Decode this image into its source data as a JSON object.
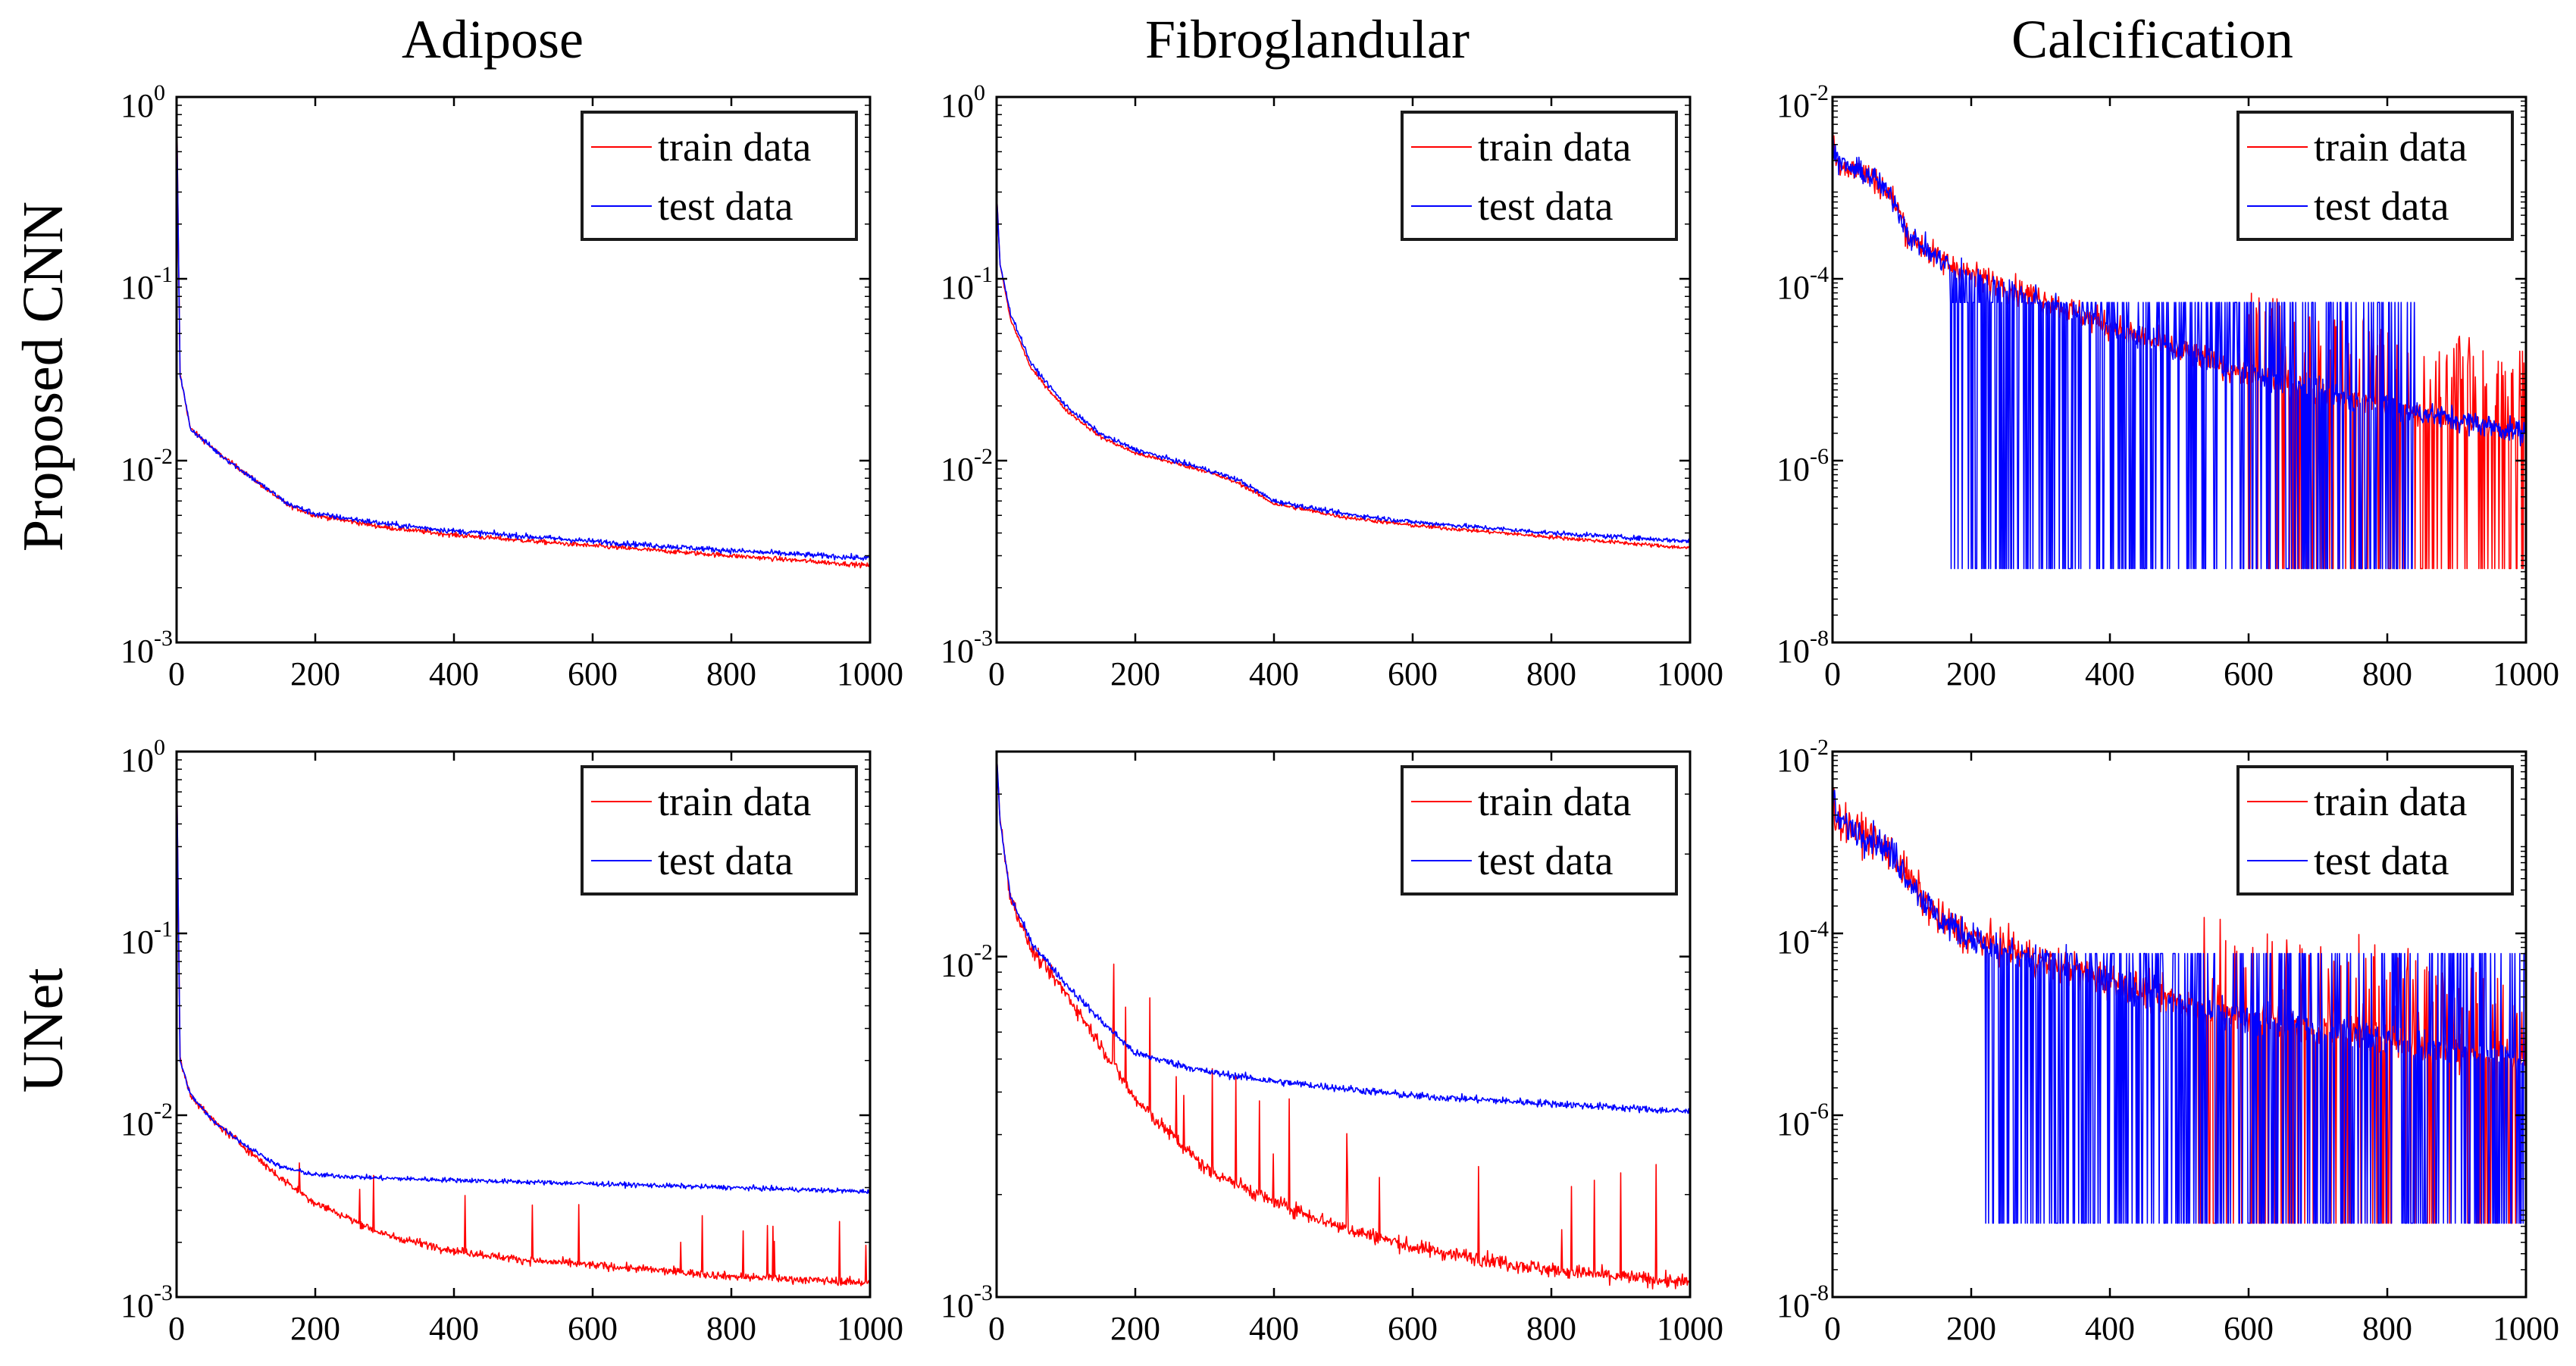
{
  "figure": {
    "column_titles": [
      "Adipose",
      "Fibroglandular",
      "Calcification"
    ],
    "row_labels": [
      "Proposed CNN",
      "UNet"
    ],
    "colors": {
      "train": "#ff0000",
      "test": "#0000ff",
      "axis": "#000000",
      "legend_border": "#1a1a1a"
    }
  },
  "chart_data": [
    {
      "type": "line",
      "title": "Adipose",
      "row": "Proposed CNN",
      "yscale": "log",
      "xlim": [
        0,
        1000
      ],
      "ylim": [
        0.001,
        1
      ],
      "xticks": [
        0,
        200,
        400,
        600,
        800,
        1000
      ],
      "yticks": [
        {
          "base": "10",
          "exp": "-3",
          "value": 0.001
        },
        {
          "base": "10",
          "exp": "-2",
          "value": 0.01
        },
        {
          "base": "10",
          "exp": "-1",
          "value": 0.1
        },
        {
          "base": "10",
          "exp": "0",
          "value": 1
        }
      ],
      "legend": [
        "train data",
        "test data"
      ],
      "legend_position": "top-right",
      "series": [
        {
          "name": "train data",
          "color": "#ff0000",
          "noise": 0.03,
          "x": [
            0,
            5,
            20,
            60,
            100,
            160,
            200,
            300,
            400,
            600,
            800,
            1000
          ],
          "y": [
            1.0,
            0.03,
            0.015,
            0.011,
            0.0085,
            0.0057,
            0.005,
            0.0043,
            0.0039,
            0.0034,
            0.003,
            0.00265
          ]
        },
        {
          "name": "test data",
          "color": "#0000ff",
          "noise": 0.035,
          "x": [
            0,
            5,
            20,
            60,
            100,
            160,
            200,
            300,
            400,
            600,
            800,
            1000
          ],
          "y": [
            1.0,
            0.03,
            0.015,
            0.011,
            0.0085,
            0.0058,
            0.0051,
            0.0045,
            0.0041,
            0.0036,
            0.0032,
            0.0029
          ]
        }
      ]
    },
    {
      "type": "line",
      "title": "Fibroglandular",
      "row": "Proposed CNN",
      "yscale": "log",
      "xlim": [
        0,
        1000
      ],
      "ylim": [
        0.001,
        1
      ],
      "xticks": [
        0,
        200,
        400,
        600,
        800,
        1000
      ],
      "yticks": [
        {
          "base": "10",
          "exp": "-3",
          "value": 0.001
        },
        {
          "base": "10",
          "exp": "-2",
          "value": 0.01
        },
        {
          "base": "10",
          "exp": "-1",
          "value": 0.1
        },
        {
          "base": "10",
          "exp": "0",
          "value": 1
        }
      ],
      "legend": [
        "train data",
        "test data"
      ],
      "legend_position": "top-right",
      "series": [
        {
          "name": "train data",
          "color": "#ff0000",
          "noise": 0.025,
          "x": [
            0,
            5,
            20,
            50,
            100,
            150,
            200,
            300,
            350,
            400,
            500,
            600,
            800,
            1000
          ],
          "y": [
            0.3,
            0.12,
            0.06,
            0.032,
            0.019,
            0.0135,
            0.011,
            0.0088,
            0.0075,
            0.0058,
            0.0049,
            0.0044,
            0.0038,
            0.0033
          ]
        },
        {
          "name": "test data",
          "color": "#0000ff",
          "noise": 0.03,
          "x": [
            0,
            5,
            20,
            50,
            100,
            150,
            200,
            300,
            350,
            400,
            500,
            600,
            800,
            1000
          ],
          "y": [
            0.3,
            0.12,
            0.065,
            0.034,
            0.02,
            0.014,
            0.0115,
            0.009,
            0.0078,
            0.006,
            0.0051,
            0.0046,
            0.004,
            0.0036
          ]
        }
      ]
    },
    {
      "type": "line",
      "title": "Calcification",
      "row": "Proposed CNN",
      "yscale": "log",
      "xlim": [
        0,
        1000
      ],
      "ylim": [
        1e-08,
        0.01
      ],
      "xticks": [
        0,
        200,
        400,
        600,
        800,
        1000
      ],
      "yticks": [
        {
          "base": "10",
          "exp": "-8",
          "value": 1e-08
        },
        {
          "base": "10",
          "exp": "-6",
          "value": 1e-06
        },
        {
          "base": "10",
          "exp": "-4",
          "value": 0.0001
        },
        {
          "base": "10",
          "exp": "-2",
          "value": 0.01
        }
      ],
      "legend": [
        "train data",
        "test data"
      ],
      "legend_position": "top-right",
      "series": [
        {
          "name": "train data",
          "color": "#ff0000",
          "noise": 0.35,
          "spike_start": 600,
          "spike_prob": 0.45,
          "spike_low": 6.5e-08,
          "x": [
            0,
            5,
            30,
            60,
            90,
            110,
            150,
            200,
            300,
            400,
            500,
            600,
            800,
            1000
          ],
          "y": [
            0.004,
            0.002,
            0.0016,
            0.0013,
            0.0007,
            0.0003,
            0.00017,
            0.00011,
            6e-05,
            3e-05,
            1.6e-05,
            9e-06,
            4e-06,
            2e-06
          ]
        },
        {
          "name": "test data",
          "color": "#0000ff",
          "noise": 0.3,
          "spike_start": 170,
          "spike_end": 840,
          "spike_prob": 0.55,
          "spike_low": 6.5e-08,
          "spike_high": 5.5e-05,
          "x": [
            0,
            5,
            30,
            60,
            90,
            110,
            150,
            200,
            300,
            400,
            500,
            600,
            800,
            1000
          ],
          "y": [
            0.004,
            0.002,
            0.0016,
            0.0013,
            0.0007,
            0.0003,
            0.00017,
            0.00011,
            6e-05,
            3e-05,
            1.6e-05,
            9e-06,
            4e-06,
            2e-06
          ]
        }
      ]
    },
    {
      "type": "line",
      "title": "Adipose",
      "row": "UNet",
      "yscale": "log",
      "xlim": [
        0,
        1000
      ],
      "ylim": [
        0.001,
        1
      ],
      "xticks": [
        0,
        200,
        400,
        600,
        800,
        1000
      ],
      "yticks": [
        {
          "base": "10",
          "exp": "-3",
          "value": 0.001
        },
        {
          "base": "10",
          "exp": "-2",
          "value": 0.01
        },
        {
          "base": "10",
          "exp": "-1",
          "value": 0.1
        },
        {
          "base": "10",
          "exp": "0",
          "value": 1
        }
      ],
      "legend": [
        "train data",
        "test data"
      ],
      "legend_position": "top-right",
      "series": [
        {
          "name": "train data",
          "color": "#ff0000",
          "noise": 0.05,
          "spikes": true,
          "x": [
            0,
            5,
            20,
            50,
            100,
            150,
            200,
            300,
            400,
            500,
            600,
            800,
            1000
          ],
          "y": [
            1.0,
            0.02,
            0.013,
            0.0095,
            0.0066,
            0.0045,
            0.0033,
            0.0022,
            0.0018,
            0.0016,
            0.0015,
            0.0013,
            0.0012
          ]
        },
        {
          "name": "test data",
          "color": "#0000ff",
          "noise": 0.03,
          "x": [
            0,
            5,
            20,
            50,
            100,
            150,
            200,
            300,
            400,
            500,
            600,
            800,
            1000
          ],
          "y": [
            1.0,
            0.02,
            0.013,
            0.0095,
            0.0068,
            0.0052,
            0.0047,
            0.0045,
            0.0044,
            0.0043,
            0.0042,
            0.004,
            0.0038
          ]
        }
      ]
    },
    {
      "type": "line",
      "title": "Fibroglandular",
      "row": "UNet",
      "yscale": "log",
      "xlim": [
        0,
        1000
      ],
      "ylim": [
        0.001,
        0.04
      ],
      "xticks": [
        0,
        200,
        400,
        600,
        800,
        1000
      ],
      "yticks": [
        {
          "base": "10",
          "exp": "-3",
          "value": 0.001
        },
        {
          "base": "10",
          "exp": "-2",
          "value": 0.01
        }
      ],
      "legend": [
        "train data",
        "test data"
      ],
      "legend_position": "top-right",
      "series": [
        {
          "name": "train data",
          "color": "#ff0000",
          "noise": 0.05,
          "spikes": true,
          "x": [
            0,
            5,
            20,
            50,
            100,
            150,
            200,
            300,
            400,
            500,
            600,
            800,
            1000
          ],
          "y": [
            0.04,
            0.025,
            0.015,
            0.0105,
            0.0078,
            0.0055,
            0.0038,
            0.0024,
            0.0019,
            0.0016,
            0.0014,
            0.0012,
            0.0011
          ]
        },
        {
          "name": "test data",
          "color": "#0000ff",
          "noise": 0.025,
          "x": [
            0,
            5,
            20,
            50,
            100,
            150,
            200,
            300,
            400,
            500,
            600,
            800,
            1000
          ],
          "y": [
            0.04,
            0.025,
            0.015,
            0.011,
            0.0083,
            0.0065,
            0.0052,
            0.0046,
            0.0043,
            0.0041,
            0.0039,
            0.0037,
            0.0035
          ]
        }
      ]
    },
    {
      "type": "line",
      "title": "Calcification",
      "row": "UNet",
      "yscale": "log",
      "xlim": [
        0,
        1000
      ],
      "ylim": [
        1e-08,
        0.01
      ],
      "xticks": [
        0,
        200,
        400,
        600,
        800,
        1000
      ],
      "yticks": [
        {
          "base": "10",
          "exp": "-8",
          "value": 1e-08
        },
        {
          "base": "10",
          "exp": "-6",
          "value": 1e-06
        },
        {
          "base": "10",
          "exp": "-4",
          "value": 0.0001
        },
        {
          "base": "10",
          "exp": "-2",
          "value": 0.01
        }
      ],
      "legend": [
        "train data",
        "test data"
      ],
      "legend_position": "top-right",
      "series": [
        {
          "name": "train data",
          "color": "#ff0000",
          "noise": 0.45,
          "spike_start": 520,
          "spike_prob": 0.35,
          "spike_low": 6.5e-08,
          "x": [
            0,
            5,
            30,
            60,
            90,
            110,
            150,
            200,
            300,
            400,
            500,
            600,
            800,
            1000
          ],
          "y": [
            0.004,
            0.0018,
            0.0014,
            0.0011,
            0.0007,
            0.0004,
            0.00015,
            9e-05,
            5e-05,
            3e-05,
            1.8e-05,
            1.2e-05,
            7e-06,
            4e-06
          ]
        },
        {
          "name": "test data",
          "color": "#0000ff",
          "noise": 0.4,
          "spike_start": 220,
          "spike_prob": 0.55,
          "spike_low": 6.5e-08,
          "spike_high": 6e-05,
          "x": [
            0,
            5,
            30,
            60,
            90,
            110,
            150,
            200,
            300,
            400,
            500,
            600,
            800,
            1000
          ],
          "y": [
            0.004,
            0.0018,
            0.0014,
            0.0011,
            0.0007,
            0.0004,
            0.00015,
            9e-05,
            5e-05,
            3e-05,
            1.8e-05,
            1.2e-05,
            7e-06,
            4e-06
          ]
        }
      ]
    }
  ]
}
